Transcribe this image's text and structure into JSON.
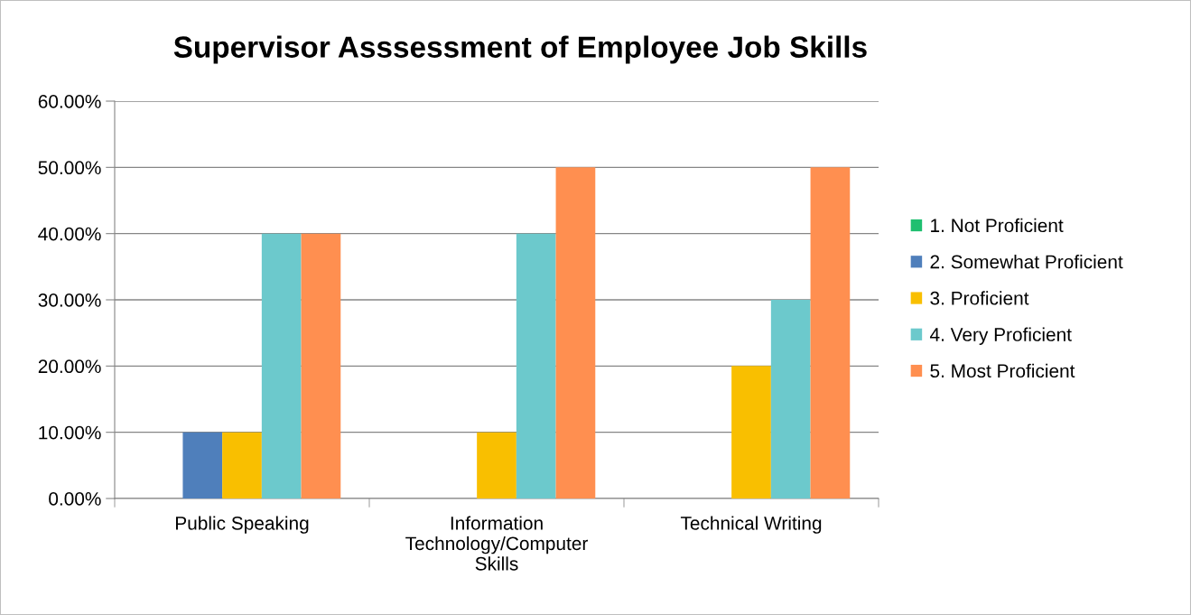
{
  "chart_data": {
    "type": "bar",
    "title": "Supervisor Asssessment of Employee Job Skills",
    "categories": [
      "Public Speaking",
      "Information Technology/Computer Skills",
      "Technical Writing"
    ],
    "series": [
      {
        "name": "1. Not Proficient",
        "color": "#1fbf70",
        "values": [
          0,
          0,
          0
        ]
      },
      {
        "name": "2. Somewhat Proficient",
        "color": "#4f7fbb",
        "values": [
          10,
          0,
          0
        ]
      },
      {
        "name": "3. Proficient",
        "color": "#f9bf00",
        "values": [
          10,
          10,
          20
        ]
      },
      {
        "name": "4. Very Proficient",
        "color": "#6cc9cc",
        "values": [
          40,
          40,
          30
        ]
      },
      {
        "name": "5. Most Proficient",
        "color": "#ff8f50",
        "values": [
          40,
          50,
          50
        ]
      }
    ],
    "ylim": [
      0,
      60
    ],
    "yticks": [
      {
        "value": 0,
        "label": "0.00%"
      },
      {
        "value": 10,
        "label": "10.00%"
      },
      {
        "value": 20,
        "label": "20.00%"
      },
      {
        "value": 30,
        "label": "30.00%"
      },
      {
        "value": 40,
        "label": "40.00%"
      },
      {
        "value": 50,
        "label": "50.00%"
      },
      {
        "value": 60,
        "label": "60.00%"
      }
    ],
    "grid": "y",
    "legend": "right"
  }
}
